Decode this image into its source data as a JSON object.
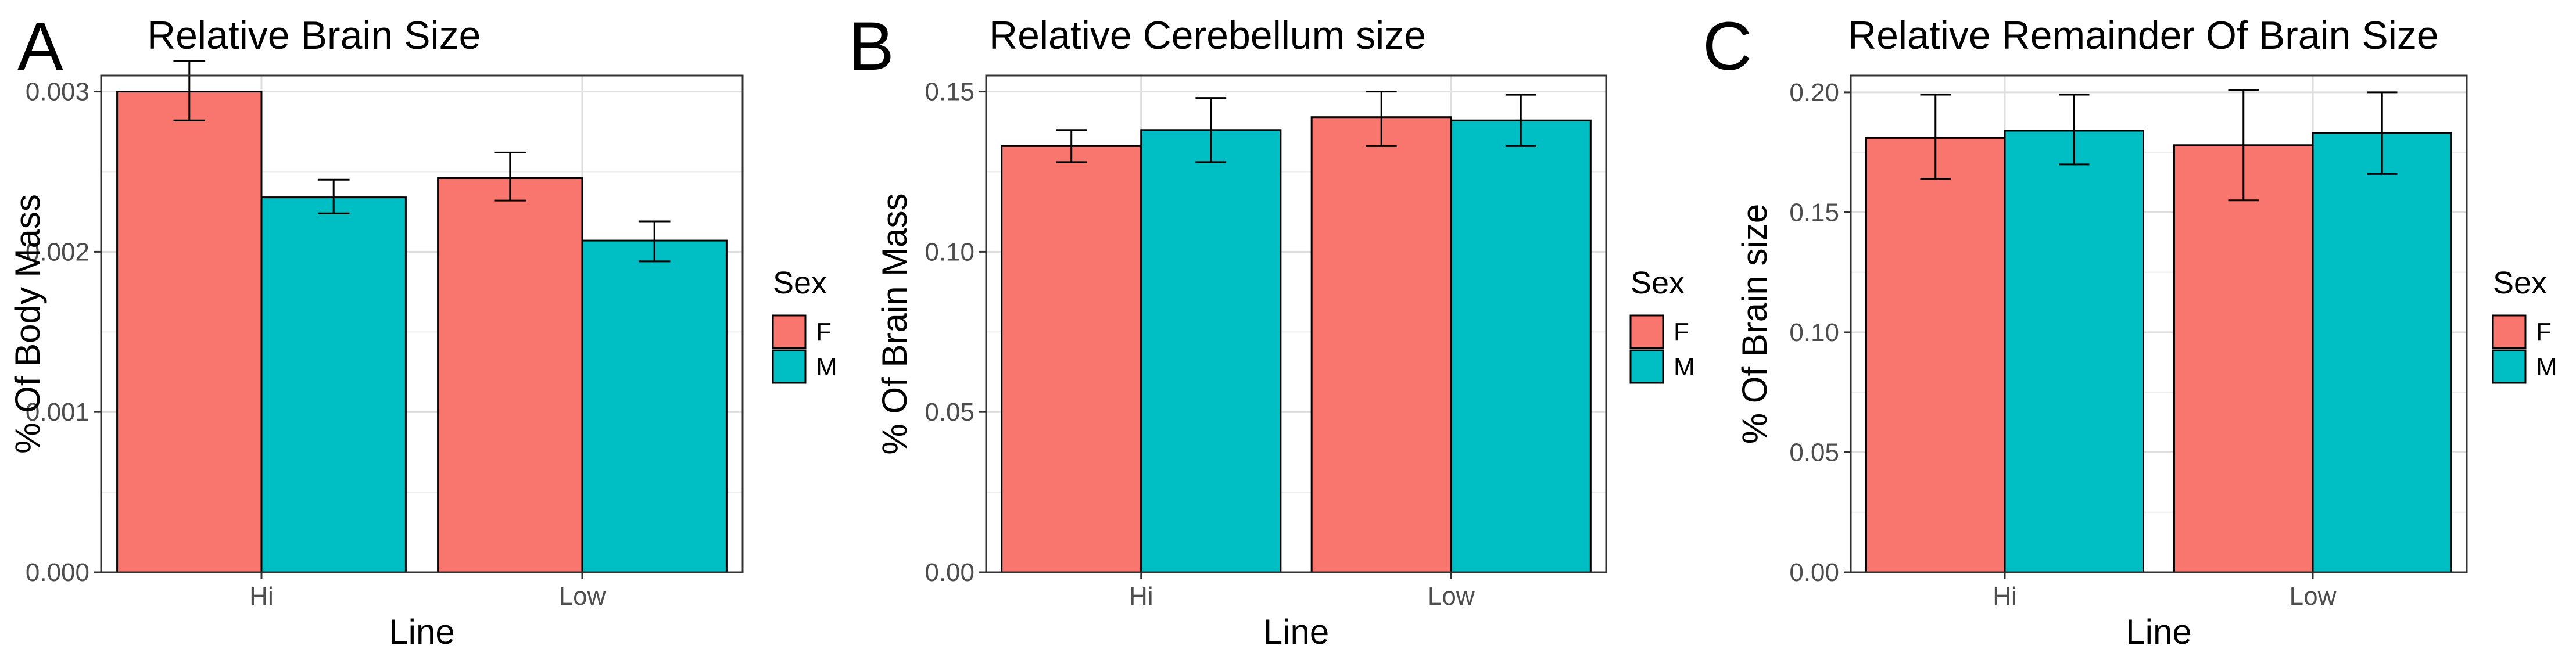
{
  "chart_data": [
    {
      "type": "bar",
      "panel_letter": "A",
      "title": "Relative Brain Size",
      "xlabel": "Line",
      "ylabel": "% Of Body Mass",
      "categories": [
        "Hi",
        "Low"
      ],
      "ylim": [
        0,
        0.0031
      ],
      "yticks": [
        0,
        0.001,
        0.002,
        0.003
      ],
      "ytick_labels": [
        "0.000",
        "0.001",
        "0.002",
        "0.003"
      ],
      "legend": {
        "title": "Sex",
        "position": "right",
        "entries": [
          "F",
          "M"
        ]
      },
      "series": [
        {
          "name": "F",
          "color": "#F8766D",
          "values": [
            0.003,
            0.00246
          ],
          "err_low": [
            0.00282,
            0.00232
          ],
          "err_high": [
            0.00319,
            0.00262
          ]
        },
        {
          "name": "M",
          "color": "#00BFC4",
          "values": [
            0.00234,
            0.00207
          ],
          "err_low": [
            0.00224,
            0.00194
          ],
          "err_high": [
            0.00245,
            0.00219
          ]
        }
      ]
    },
    {
      "type": "bar",
      "panel_letter": "B",
      "title": "Relative Cerebellum size",
      "xlabel": "Line",
      "ylabel": "% Of Brain Mass",
      "categories": [
        "Hi",
        "Low"
      ],
      "ylim": [
        0,
        0.155
      ],
      "yticks": [
        0,
        0.05,
        0.1,
        0.15
      ],
      "ytick_labels": [
        "0.00",
        "0.05",
        "0.10",
        "0.15"
      ],
      "legend": {
        "title": "Sex",
        "position": "right",
        "entries": [
          "F",
          "M"
        ]
      },
      "series": [
        {
          "name": "F",
          "color": "#F8766D",
          "values": [
            0.133,
            0.142
          ],
          "err_low": [
            0.128,
            0.133
          ],
          "err_high": [
            0.138,
            0.15
          ]
        },
        {
          "name": "M",
          "color": "#00BFC4",
          "values": [
            0.138,
            0.141
          ],
          "err_low": [
            0.128,
            0.133
          ],
          "err_high": [
            0.148,
            0.149
          ]
        }
      ]
    },
    {
      "type": "bar",
      "panel_letter": "C",
      "title": "Relative Remainder Of Brain Size",
      "xlabel": "Line",
      "ylabel": "% Of Brain size",
      "categories": [
        "Hi",
        "Low"
      ],
      "ylim": [
        0,
        0.207
      ],
      "yticks": [
        0,
        0.05,
        0.1,
        0.15,
        0.2
      ],
      "ytick_labels": [
        "0.00",
        "0.05",
        "0.10",
        "0.15",
        "0.20"
      ],
      "legend": {
        "title": "Sex",
        "position": "right",
        "entries": [
          "F",
          "M"
        ]
      },
      "series": [
        {
          "name": "F",
          "color": "#F8766D",
          "values": [
            0.181,
            0.178
          ],
          "err_low": [
            0.164,
            0.155
          ],
          "err_high": [
            0.199,
            0.201
          ]
        },
        {
          "name": "M",
          "color": "#00BFC4",
          "values": [
            0.184,
            0.183
          ],
          "err_low": [
            0.17,
            0.166
          ],
          "err_high": [
            0.199,
            0.2
          ]
        }
      ]
    }
  ]
}
